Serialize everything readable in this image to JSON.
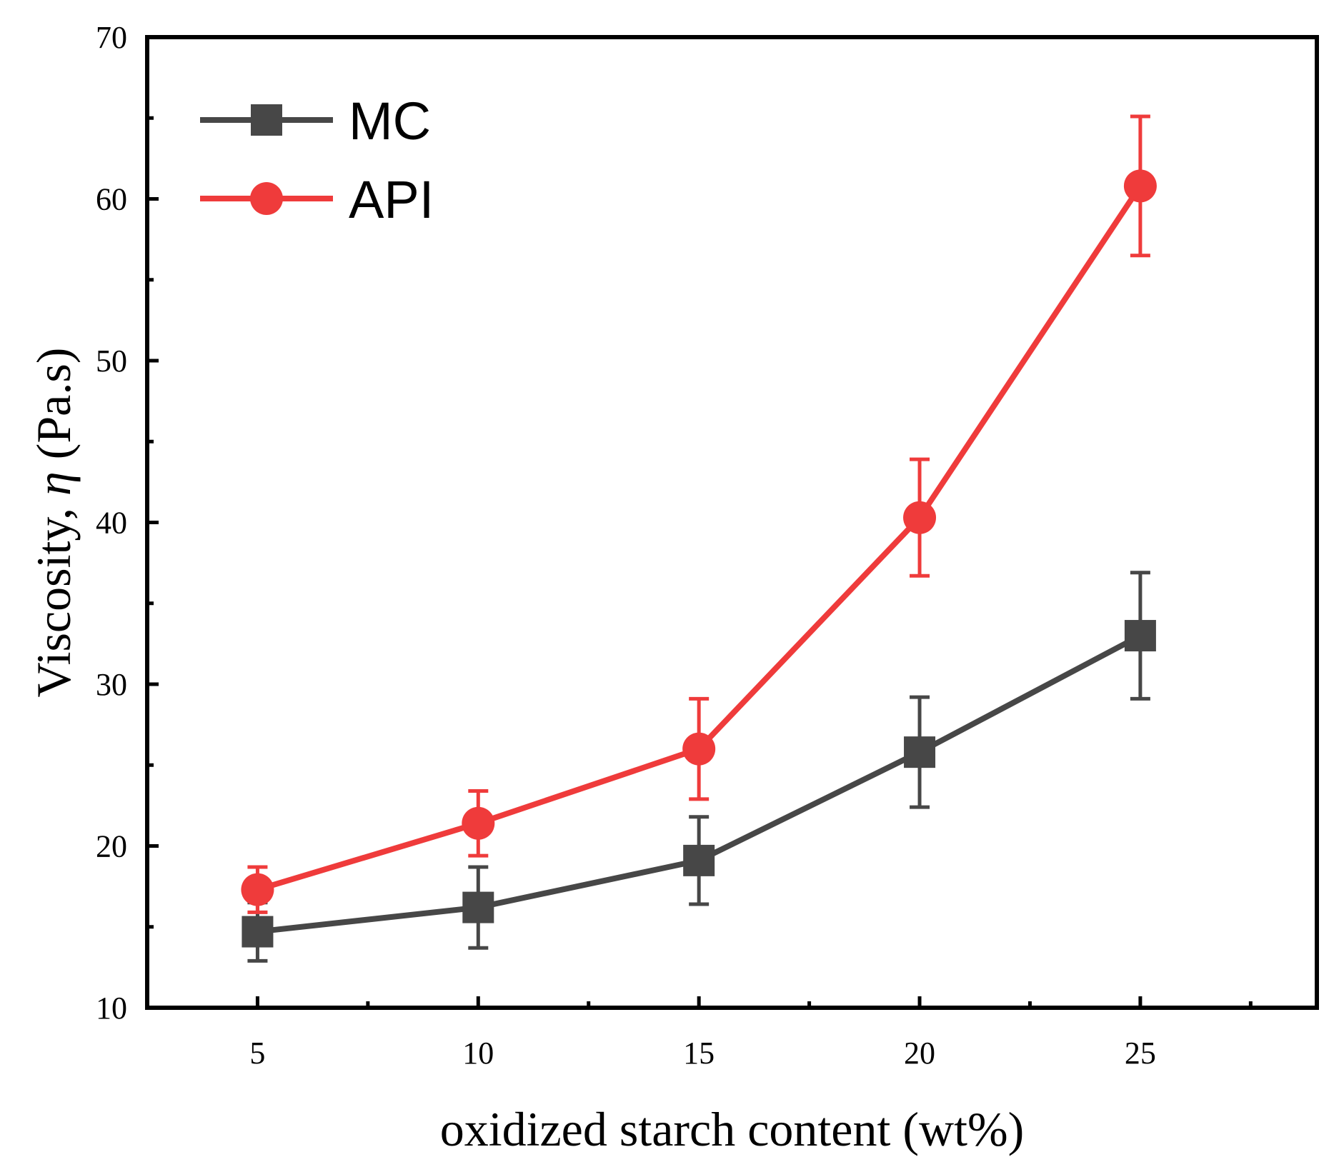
{
  "chart_data": {
    "type": "line",
    "title": "",
    "xlabel": "oxidized starch content (wt%)",
    "ylabel_prefix": "Viscosity, ",
    "ylabel_symbol": "η",
    "ylabel_suffix": " (Pa.s)",
    "x": [
      5,
      10,
      15,
      20,
      25
    ],
    "xlim": [
      2.5,
      29
    ],
    "ylim": [
      10,
      70
    ],
    "xticks": [
      5,
      10,
      15,
      20,
      25
    ],
    "yticks": [
      10,
      20,
      30,
      40,
      50,
      60,
      70
    ],
    "grid": false,
    "legend_position": "top-left",
    "series": [
      {
        "name": "MC",
        "marker": "square",
        "color": "#474747",
        "values": [
          14.7,
          16.2,
          19.1,
          25.8,
          33.0
        ],
        "errors": [
          1.8,
          2.5,
          2.7,
          3.4,
          3.9
        ]
      },
      {
        "name": "API",
        "marker": "circle",
        "color": "#ef3b3b",
        "values": [
          17.3,
          21.4,
          26.0,
          40.3,
          60.8
        ],
        "errors": [
          1.4,
          2.0,
          3.1,
          3.6,
          4.3
        ]
      }
    ]
  }
}
